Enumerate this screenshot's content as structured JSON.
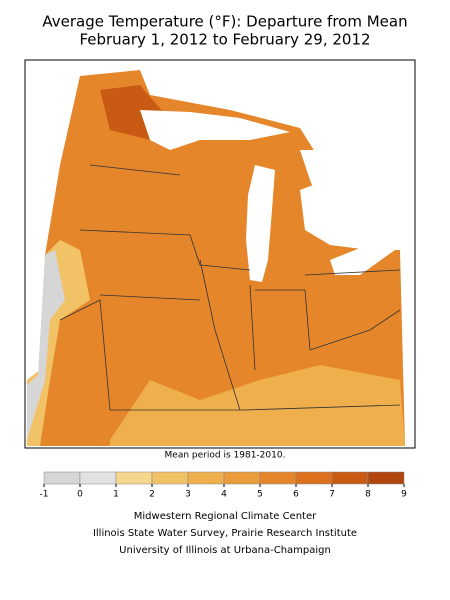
{
  "title": "Average Temperature (°F): Departure from Mean",
  "subtitle": "February 1, 2012 to February 29, 2012",
  "note": "Mean period is 1981-2010.",
  "legend": {
    "ticks": [
      -1,
      0,
      1,
      2,
      3,
      4,
      5,
      6,
      7,
      8,
      9
    ],
    "colors": [
      "#d6d6d6",
      "#e2e2e2",
      "#f6d68c",
      "#f2c266",
      "#eeaf4c",
      "#ea9c3a",
      "#e5862a",
      "#dc701c",
      "#c95a14",
      "#b0460e"
    ]
  },
  "credits": [
    "Midwestern Regional Climate Center",
    "Illinois State Water Survey, Prairie Research Institute",
    "University of Illinois at Urbana-Champaign"
  ]
}
